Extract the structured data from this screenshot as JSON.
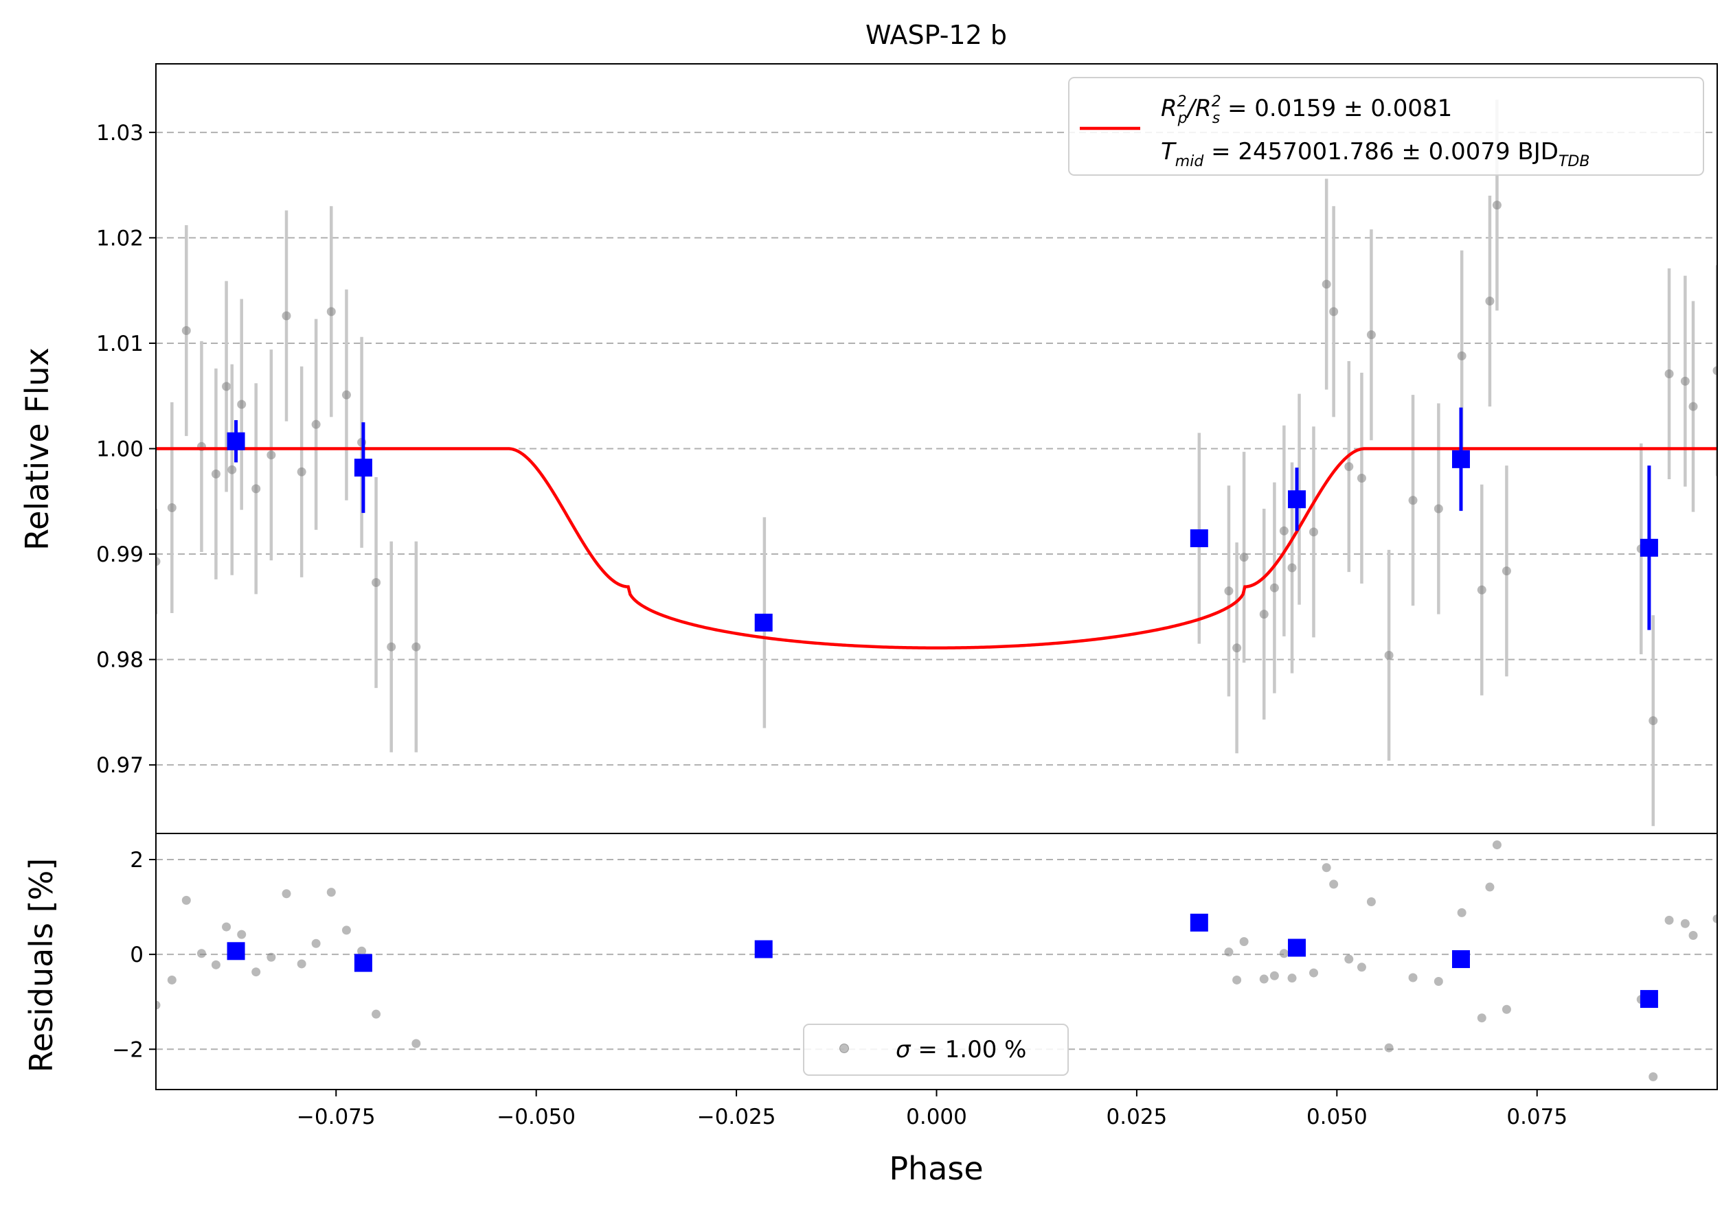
{
  "chart_data": [
    {
      "panel": "top",
      "type": "scatter",
      "title": "WASP-12 b",
      "xlabel": "",
      "ylabel": "Relative Flux",
      "xlim": [
        -0.0975,
        0.0975
      ],
      "ylim": [
        0.9635,
        1.0365
      ],
      "yticks": [
        0.97,
        0.98,
        0.99,
        1.0,
        1.01,
        1.02,
        1.03
      ],
      "ytick_labels": [
        "0.97",
        "0.98",
        "0.99",
        "1.00",
        "1.01",
        "1.02",
        "1.03"
      ],
      "grid": "y-dashed",
      "legend_position": "top-right",
      "legend": {
        "line1": {
          "main": "R",
          "sub1": "p",
          "sup1": "2",
          "mid": "/R",
          "sub2": "s",
          "sup2": "2",
          "rest": " = 0.0159 ± 0.0081"
        },
        "line2": {
          "main": "T",
          "sub1": "mid",
          "rest": " = 2457001.786 ± 0.0079 BJD",
          "sub2": "TDB"
        }
      },
      "colors": {
        "raw": "#808080",
        "rawerr": "#c8c8c8",
        "binned": "#0000ff",
        "model": "#ff0000",
        "grid": "#b0b0b0"
      },
      "raw": [
        [
          -0.0975,
          0.9893,
          0.005
        ],
        [
          -0.0955,
          0.9944,
          0.01
        ],
        [
          -0.0937,
          1.0112,
          0.01
        ],
        [
          -0.0918,
          1.0002,
          0.01
        ],
        [
          -0.09,
          0.9976,
          0.01
        ],
        [
          -0.0887,
          1.0059,
          0.01
        ],
        [
          -0.088,
          0.998,
          0.01
        ],
        [
          -0.0868,
          1.0042,
          0.01
        ],
        [
          -0.085,
          0.9962,
          0.01
        ],
        [
          -0.0831,
          0.9994,
          0.01
        ],
        [
          -0.0812,
          1.0126,
          0.01
        ],
        [
          -0.0793,
          0.9978,
          0.01
        ],
        [
          -0.0775,
          1.0023,
          0.01
        ],
        [
          -0.0756,
          1.013,
          0.01
        ],
        [
          -0.0737,
          1.0051,
          0.01
        ],
        [
          -0.0718,
          1.0006,
          0.01
        ],
        [
          -0.07,
          0.9873,
          0.01
        ],
        [
          -0.0681,
          0.9812,
          0.01
        ],
        [
          -0.065,
          0.9812,
          0.01
        ],
        [
          -0.0215,
          0.9835,
          0.01
        ],
        [
          0.0328,
          0.9915,
          0.01
        ],
        [
          0.0365,
          0.9865,
          0.01
        ],
        [
          0.0375,
          0.9811,
          0.01
        ],
        [
          0.0384,
          0.9897,
          0.01
        ],
        [
          0.0409,
          0.9843,
          0.01
        ],
        [
          0.0422,
          0.9868,
          0.01
        ],
        [
          0.0434,
          0.9922,
          0.01
        ],
        [
          0.0444,
          0.9887,
          0.01
        ],
        [
          0.0453,
          0.9952,
          0.01
        ],
        [
          0.0471,
          0.9921,
          0.01
        ],
        [
          0.0487,
          1.0156,
          0.01
        ],
        [
          0.0496,
          1.013,
          0.01
        ],
        [
          0.0515,
          0.9983,
          0.01
        ],
        [
          0.0531,
          0.9972,
          0.01
        ],
        [
          0.0543,
          1.0108,
          0.01
        ],
        [
          0.0565,
          0.9804,
          0.01
        ],
        [
          0.0595,
          0.9951,
          0.01
        ],
        [
          0.0627,
          0.9943,
          0.01
        ],
        [
          0.0656,
          1.0088,
          0.01
        ],
        [
          0.0681,
          0.9866,
          0.01
        ],
        [
          0.0691,
          1.014,
          0.01
        ],
        [
          0.07,
          1.0231,
          0.01
        ],
        [
          0.0712,
          0.9884,
          0.01
        ],
        [
          0.088,
          0.9905,
          0.01
        ],
        [
          0.0895,
          0.9742,
          0.01
        ],
        [
          0.0915,
          1.0071,
          0.01
        ],
        [
          0.0935,
          1.0064,
          0.01
        ],
        [
          0.0945,
          1.004,
          0.01
        ],
        [
          0.0975,
          1.0074,
          0.01
        ]
      ],
      "binned": [
        [
          -0.0875,
          1.0007,
          0.002
        ],
        [
          -0.0716,
          0.9982,
          0.0043
        ],
        [
          -0.0216,
          0.9835,
          0.0
        ],
        [
          0.0328,
          0.9915,
          0.0
        ],
        [
          0.045,
          0.9952,
          0.003
        ],
        [
          0.0655,
          0.999,
          0.0049
        ],
        [
          0.089,
          0.9906,
          0.0078
        ]
      ],
      "model": {
        "baseline": 1.0,
        "depth": 0.0189,
        "t1": 0.0535,
        "t2": 0.0385,
        "limb_coef": 0.0057,
        "ingress_depth": 0.0131
      }
    },
    {
      "panel": "bottom",
      "type": "scatter",
      "xlabel": "Phase",
      "ylabel": "Residuals [%]",
      "xlim": [
        -0.0975,
        0.0975
      ],
      "ylim": [
        -2.85,
        2.55
      ],
      "xticks": [
        -0.075,
        -0.05,
        -0.025,
        0.0,
        0.025,
        0.05,
        0.075
      ],
      "xtick_labels": [
        "−0.075",
        "−0.050",
        "−0.025",
        "0.000",
        "0.025",
        "0.050",
        "0.075"
      ],
      "yticks": [
        -2,
        0,
        2
      ],
      "ytick_labels": [
        "−2",
        "0",
        "2"
      ],
      "grid": "y-dashed",
      "legend_position": "lower-center",
      "legend": {
        "sigma": "σ",
        "rest": " = 1.00 %"
      },
      "raw": [
        [
          -0.0975,
          -1.07
        ],
        [
          -0.0955,
          -0.54
        ],
        [
          -0.0937,
          1.14
        ],
        [
          -0.0918,
          0.02
        ],
        [
          -0.09,
          -0.22
        ],
        [
          -0.0887,
          0.58
        ],
        [
          -0.0868,
          0.42
        ],
        [
          -0.085,
          -0.37
        ],
        [
          -0.0831,
          -0.06
        ],
        [
          -0.0812,
          1.28
        ],
        [
          -0.0793,
          -0.2
        ],
        [
          -0.0775,
          0.23
        ],
        [
          -0.0756,
          1.31
        ],
        [
          -0.0737,
          0.51
        ],
        [
          -0.0718,
          0.07
        ],
        [
          -0.07,
          -1.26
        ],
        [
          -0.065,
          -1.88
        ],
        [
          0.0365,
          0.05
        ],
        [
          0.0375,
          -0.54
        ],
        [
          0.0384,
          0.27
        ],
        [
          0.0409,
          -0.52
        ],
        [
          0.0422,
          -0.45
        ],
        [
          0.0434,
          0.02
        ],
        [
          0.0444,
          -0.5
        ],
        [
          0.0471,
          -0.39
        ],
        [
          0.0487,
          1.83
        ],
        [
          0.0496,
          1.48
        ],
        [
          0.0515,
          -0.1
        ],
        [
          0.0531,
          -0.27
        ],
        [
          0.0543,
          1.11
        ],
        [
          0.0565,
          -1.97
        ],
        [
          0.0595,
          -0.49
        ],
        [
          0.0627,
          -0.57
        ],
        [
          0.0656,
          0.88
        ],
        [
          0.0681,
          -1.34
        ],
        [
          0.0691,
          1.42
        ],
        [
          0.07,
          2.31
        ],
        [
          0.0712,
          -1.16
        ],
        [
          0.088,
          -0.95
        ],
        [
          0.0895,
          -2.58
        ],
        [
          0.0915,
          0.72
        ],
        [
          0.0935,
          0.65
        ],
        [
          0.0945,
          0.4
        ],
        [
          0.0975,
          0.75
        ]
      ],
      "binned": [
        [
          -0.0875,
          0.07
        ],
        [
          -0.0716,
          -0.18
        ],
        [
          -0.0216,
          0.11
        ],
        [
          0.0328,
          0.67
        ],
        [
          0.045,
          0.14
        ],
        [
          0.0655,
          -0.1
        ],
        [
          0.089,
          -0.94
        ]
      ]
    }
  ]
}
